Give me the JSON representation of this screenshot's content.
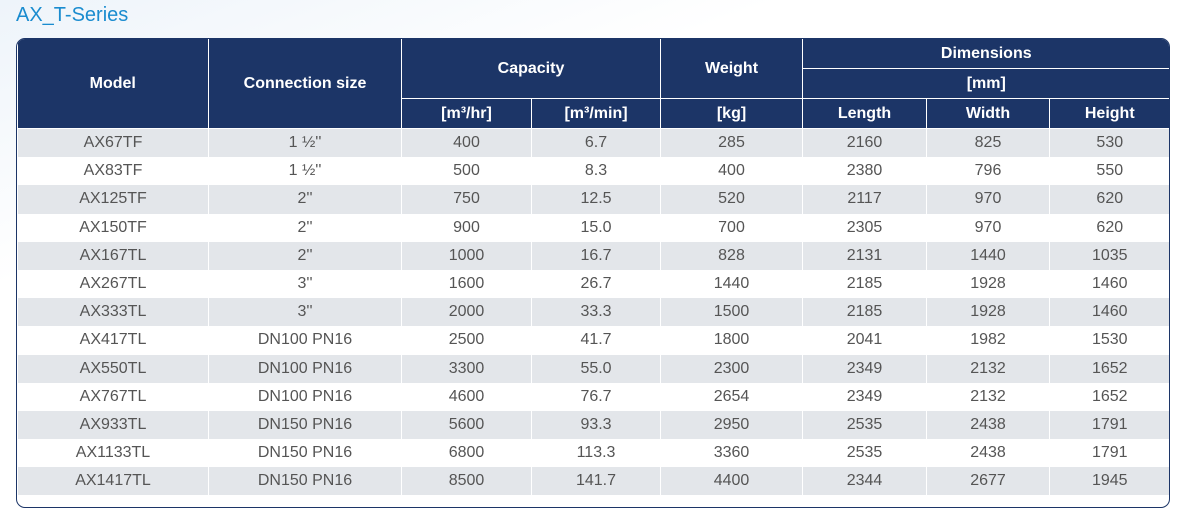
{
  "title": "AX_T-Series",
  "table": {
    "header": {
      "model": "Model",
      "connection": "Connection size",
      "capacity": "Capacity",
      "weight": "Weight",
      "dimensions": "Dimensions",
      "dimensions_unit": "[mm]",
      "units": [
        "[m³/hr]",
        "[m³/min]",
        "[kg]",
        "Length",
        "Width",
        "Height"
      ]
    },
    "rows": [
      [
        "AX67TF",
        "1 ½''",
        "400",
        "6.7",
        "285",
        "2160",
        "825",
        "530"
      ],
      [
        "AX83TF",
        "1 ½''",
        "500",
        "8.3",
        "400",
        "2380",
        "796",
        "550"
      ],
      [
        "AX125TF",
        "2''",
        "750",
        "12.5",
        "520",
        "2117",
        "970",
        "620"
      ],
      [
        "AX150TF",
        "2''",
        "900",
        "15.0",
        "700",
        "2305",
        "970",
        "620"
      ],
      [
        "AX167TL",
        "2''",
        "1000",
        "16.7",
        "828",
        "2131",
        "1440",
        "1035"
      ],
      [
        "AX267TL",
        "3''",
        "1600",
        "26.7",
        "1440",
        "2185",
        "1928",
        "1460"
      ],
      [
        "AX333TL",
        "3''",
        "2000",
        "33.3",
        "1500",
        "2185",
        "1928",
        "1460"
      ],
      [
        "AX417TL",
        "DN100 PN16",
        "2500",
        "41.7",
        "1800",
        "2041",
        "1982",
        "1530"
      ],
      [
        "AX550TL",
        "DN100 PN16",
        "3300",
        "55.0",
        "2300",
        "2349",
        "2132",
        "1652"
      ],
      [
        "AX767TL",
        "DN100 PN16",
        "4600",
        "76.7",
        "2654",
        "2349",
        "2132",
        "1652"
      ],
      [
        "AX933TL",
        "DN150 PN16",
        "5600",
        "93.3",
        "2950",
        "2535",
        "2438",
        "1791"
      ],
      [
        "AX1133TL",
        "DN150 PN16",
        "6800",
        "113.3",
        "3360",
        "2535",
        "2438",
        "1791"
      ],
      [
        "AX1417TL",
        "DN150 PN16",
        "8500",
        "141.7",
        "4400",
        "2344",
        "2677",
        "1945"
      ]
    ]
  }
}
